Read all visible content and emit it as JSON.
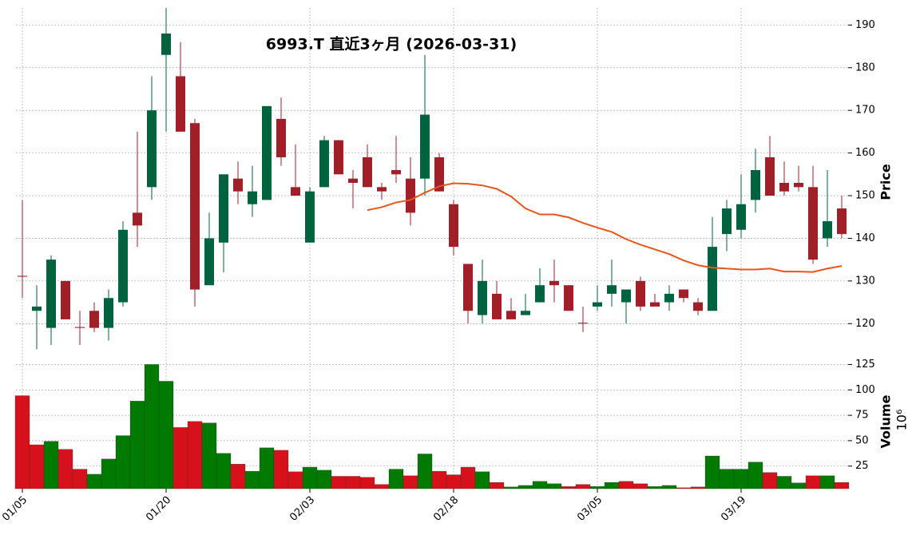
{
  "chart_data": {
    "type": "candlestick",
    "title": "6993.T  直近3ヶ月 (2026-03-31)",
    "categories": [
      "01/05",
      null,
      null,
      null,
      null,
      null,
      null,
      null,
      null,
      null,
      "01/20",
      null,
      null,
      null,
      null,
      null,
      null,
      null,
      null,
      null,
      "02/03",
      null,
      null,
      null,
      null,
      null,
      null,
      null,
      null,
      null,
      "02/18",
      null,
      null,
      null,
      null,
      null,
      null,
      null,
      null,
      null,
      "03/05",
      null,
      null,
      null,
      null,
      null,
      null,
      null,
      null,
      null,
      "03/19",
      null,
      null,
      null,
      null,
      null,
      null,
      null
    ],
    "open": [
      131.2,
      123,
      119,
      130,
      119.2,
      123,
      119,
      125,
      146,
      152,
      183,
      178,
      167,
      129,
      139,
      154,
      148,
      149,
      168,
      152,
      139,
      152,
      163,
      154,
      159,
      152,
      156,
      154,
      154,
      159,
      148,
      134,
      122,
      127,
      123,
      122,
      125,
      130,
      129,
      120.2,
      124,
      127,
      125,
      130,
      125,
      125,
      128,
      125,
      123,
      141,
      142,
      149,
      159,
      153,
      153,
      152,
      140,
      147
    ],
    "high": [
      149,
      129,
      136,
      130,
      123,
      125,
      128,
      144,
      165,
      178,
      194,
      186,
      168,
      146,
      155,
      158,
      157,
      171,
      173,
      162,
      152,
      164,
      163,
      156,
      162,
      153,
      164,
      159,
      183,
      160,
      149,
      134,
      135,
      130,
      126,
      127,
      133,
      135,
      129,
      124,
      129,
      135,
      128,
      131,
      127,
      129,
      128,
      126,
      145,
      149,
      155,
      161,
      164,
      158,
      157,
      157,
      156,
      150
    ],
    "low": [
      126,
      114,
      115,
      121,
      115,
      118,
      116,
      124,
      138,
      149,
      165,
      165,
      124,
      129,
      132,
      148,
      145,
      149,
      157,
      150,
      139,
      152,
      155,
      147,
      152,
      149,
      153,
      143,
      150,
      151,
      136,
      120,
      120,
      121,
      121,
      122,
      125,
      125,
      123,
      118,
      123,
      124,
      120,
      123,
      124,
      123,
      125,
      122,
      123,
      137,
      140,
      146,
      150,
      150,
      151,
      134,
      138,
      140
    ],
    "close": [
      131,
      124,
      135,
      121,
      119,
      119,
      126,
      142,
      143,
      170,
      188,
      165,
      128,
      140,
      155,
      151,
      151,
      171,
      159,
      150,
      151,
      163,
      155,
      153,
      152,
      151,
      155,
      146,
      169,
      151,
      138,
      123,
      130,
      121,
      121,
      123,
      129,
      129,
      123,
      120,
      125,
      129,
      128,
      124,
      124,
      127,
      126,
      123,
      138,
      147,
      148,
      156,
      150,
      151,
      152,
      135,
      144,
      141
    ],
    "up_color": "#00633f",
    "down_color": "#a01f29",
    "ma": {
      "color": "#e8561a",
      "values": [
        null,
        null,
        null,
        null,
        null,
        null,
        null,
        null,
        null,
        null,
        null,
        null,
        null,
        null,
        null,
        null,
        null,
        null,
        null,
        null,
        null,
        null,
        null,
        null,
        146.6,
        147.3,
        148.4,
        149,
        150.7,
        152.2,
        152.9,
        152.8,
        152.4,
        151.6,
        149.8,
        147,
        145.6,
        145.6,
        144.9,
        143.6,
        142.5,
        141.5,
        139.8,
        138.5,
        137.4,
        136.3,
        134.8,
        133.7,
        133.1,
        132.9,
        132.7,
        132.7,
        132.9,
        132.2,
        132.2,
        132.1,
        132.9,
        133.5
      ]
    },
    "ylim": [
      113.5,
      194
    ],
    "yticks": [
      120,
      130,
      140,
      150,
      160,
      170,
      180,
      190
    ],
    "ylabel": "Price",
    "volume": {
      "values": [
        94.3,
        46,
        49.4,
        41.5,
        22,
        17,
        32,
        55,
        89,
        125,
        108.5,
        63,
        69,
        67.5,
        37.6,
        27,
        20,
        43,
        40.6,
        19.5,
        24,
        21,
        15,
        15,
        14,
        7,
        22,
        15.5,
        37,
        20,
        16.5,
        24,
        19.5,
        9,
        4.5,
        6,
        10,
        7.7,
        5,
        7,
        5,
        9,
        10,
        7.7,
        5,
        6,
        3.7,
        4.5,
        35,
        22,
        22,
        29,
        18.7,
        15,
        8.5,
        15.5,
        15.5,
        9
      ],
      "up_color": "#007a00",
      "down_color": "#d7111b",
      "ylim": [
        2.8,
        134
      ],
      "yticks": [
        25,
        50,
        75,
        100,
        125
      ],
      "ylabel": "Volume",
      "offset_label": "10⁶"
    },
    "grid": true
  }
}
